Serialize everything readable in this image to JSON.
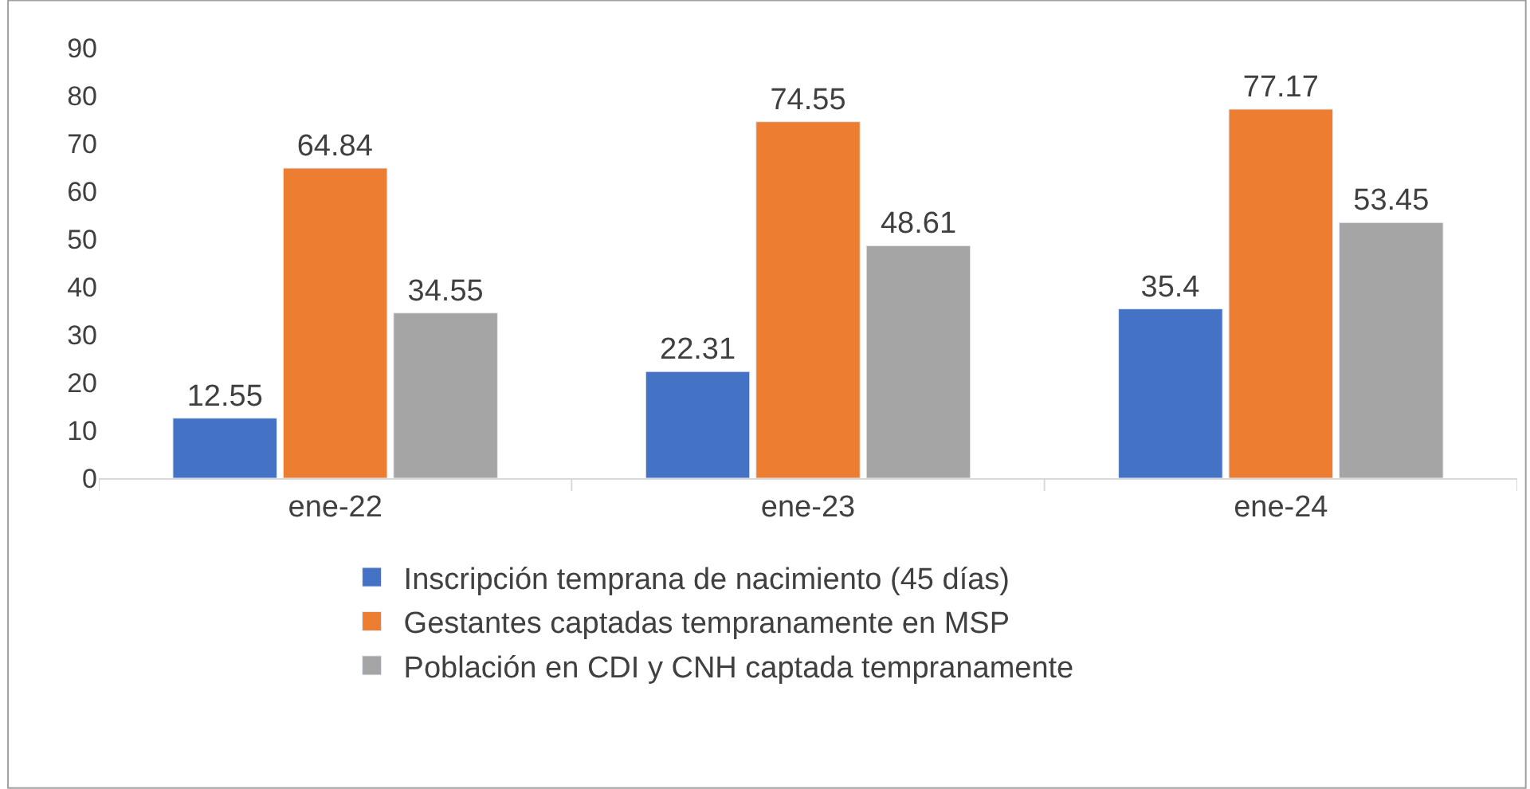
{
  "chart_data": {
    "type": "bar",
    "categories": [
      "ene-22",
      "ene-23",
      "ene-24"
    ],
    "series": [
      {
        "name": "Inscripción temprana de nacimiento (45 días)",
        "color": "#4472c4",
        "values": [
          12.55,
          22.31,
          35.4
        ]
      },
      {
        "name": "Gestantes captadas tempranamente en MSP",
        "color": "#ed7d31",
        "values": [
          64.84,
          74.55,
          77.17
        ]
      },
      {
        "name": "Población en CDI y CNH captada tempranamente",
        "color": "#a5a5a5",
        "values": [
          34.55,
          48.61,
          53.45
        ]
      }
    ],
    "ylim": [
      0,
      90
    ],
    "yticks": [
      0,
      10,
      20,
      30,
      40,
      50,
      60,
      70,
      80,
      90
    ],
    "legend": "bottom",
    "data_labels": true
  }
}
